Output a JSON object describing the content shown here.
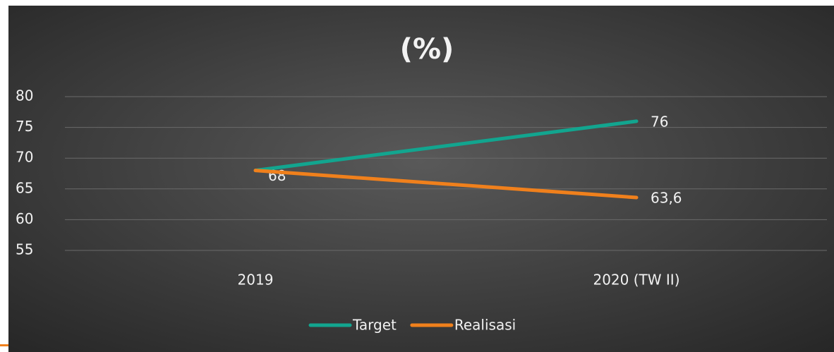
{
  "chart_data": {
    "type": "line",
    "title": "(%)",
    "categories": [
      "2019",
      "2020 (TW II)"
    ],
    "series": [
      {
        "name": "Target",
        "color": "#12a58f",
        "values": [
          68,
          76
        ],
        "value_labels": [
          "68",
          "76"
        ]
      },
      {
        "name": "Realisasi",
        "color": "#f0801c",
        "values": [
          68,
          63.6
        ],
        "value_labels": [
          null,
          "63,6"
        ]
      }
    ],
    "ylim": [
      55,
      80
    ],
    "yticks": [
      55,
      60,
      65,
      70,
      75,
      80
    ],
    "grid": true,
    "legend": "bottom"
  }
}
